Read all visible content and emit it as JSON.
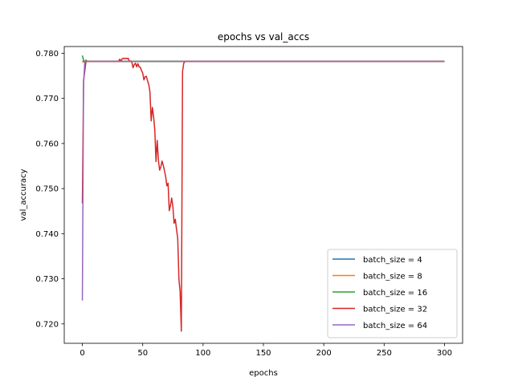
{
  "chart_data": {
    "type": "line",
    "title": "epochs vs val_accs",
    "xlabel": "epochs",
    "ylabel": "val_accuracy",
    "xlim": [
      -15,
      315
    ],
    "ylim": [
      0.7157,
      0.7815
    ],
    "xticks": [
      0,
      50,
      100,
      150,
      200,
      250,
      300
    ],
    "yticks": [
      0.72,
      0.73,
      0.74,
      0.75,
      0.76,
      0.77,
      0.78
    ],
    "ytick_labels": [
      "0.720",
      "0.730",
      "0.740",
      "0.750",
      "0.760",
      "0.770",
      "0.780"
    ],
    "grid": false,
    "legend_position": "lower right",
    "series": [
      {
        "name": "batch_size = 4",
        "color": "#1f77b4",
        "x": [
          0,
          1,
          2,
          3,
          300
        ],
        "y": [
          0.7782,
          0.7782,
          0.7782,
          0.7782,
          0.7782
        ]
      },
      {
        "name": "batch_size = 8",
        "color": "#ff7f0e",
        "x": [
          0,
          2,
          3,
          300
        ],
        "y": [
          0.778,
          0.7782,
          0.7782,
          0.7782
        ]
      },
      {
        "name": "batch_size = 16",
        "color": "#2ca02c",
        "x": [
          0,
          1,
          2,
          3,
          4,
          300
        ],
        "y": [
          0.7795,
          0.7785,
          0.778,
          0.7785,
          0.7782,
          0.7782
        ]
      },
      {
        "name": "batch_size = 32",
        "color": "#d62728",
        "x": [
          0,
          1,
          2,
          3,
          4,
          30,
          31,
          32,
          33,
          34,
          35,
          36,
          37,
          38,
          39,
          40,
          41,
          42,
          43,
          44,
          45,
          46,
          47,
          48,
          49,
          50,
          51,
          52,
          53,
          54,
          55,
          56,
          57,
          58,
          59,
          60,
          61,
          62,
          63,
          64,
          65,
          66,
          67,
          68,
          69,
          70,
          71,
          72,
          73,
          74,
          75,
          76,
          77,
          78,
          79,
          80,
          81,
          82,
          83,
          84,
          85,
          86,
          87,
          300
        ],
        "y": [
          0.7467,
          0.774,
          0.776,
          0.7782,
          0.7782,
          0.7782,
          0.7787,
          0.7782,
          0.7788,
          0.7789,
          0.7788,
          0.7789,
          0.7788,
          0.7789,
          0.7782,
          0.7783,
          0.778,
          0.7768,
          0.7775,
          0.7778,
          0.777,
          0.7777,
          0.777,
          0.7769,
          0.7762,
          0.7756,
          0.7741,
          0.7748,
          0.7749,
          0.7739,
          0.7731,
          0.7714,
          0.765,
          0.768,
          0.766,
          0.763,
          0.756,
          0.7607,
          0.7563,
          0.7541,
          0.7548,
          0.7561,
          0.7552,
          0.754,
          0.7527,
          0.7506,
          0.7512,
          0.7451,
          0.7463,
          0.7479,
          0.746,
          0.7423,
          0.7432,
          0.741,
          0.739,
          0.73,
          0.727,
          0.7184,
          0.776,
          0.7778,
          0.7782,
          0.7782,
          0.7782,
          0.7782
        ]
      },
      {
        "name": "batch_size = 64",
        "color": "#9467bd",
        "x": [
          0,
          1,
          2,
          3,
          300
        ],
        "y": [
          0.7252,
          0.773,
          0.7782,
          0.7782,
          0.7782
        ]
      }
    ]
  }
}
